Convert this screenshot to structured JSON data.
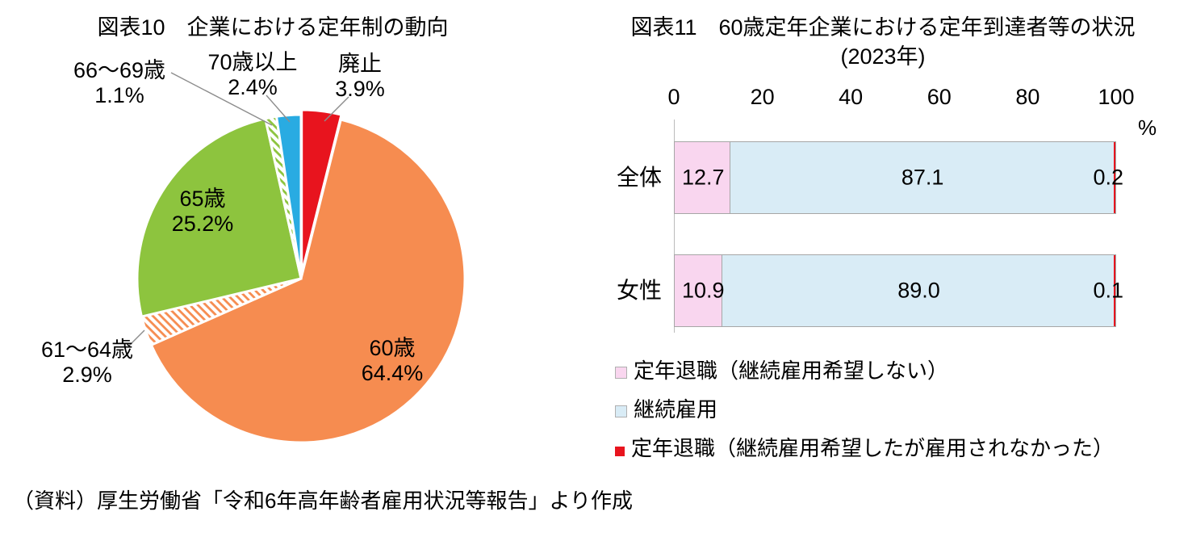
{
  "page": {
    "source_note": "（資料）厚生労働省「令和6年高年齢者雇用状況等報告」より作成"
  },
  "chart_data": [
    {
      "type": "pie",
      "title": "図表10　企業における定年制の動向",
      "unit": "%",
      "start_angle_deg": 0,
      "direction": "clockwise",
      "slices": [
        {
          "label": "廃止",
          "value": 3.9,
          "color": "#e8141e",
          "pattern": "solid",
          "exploded": true
        },
        {
          "label": "60歳",
          "value": 64.4,
          "color": "#f68c50",
          "pattern": "solid"
        },
        {
          "label": "61〜64歳",
          "value": 2.9,
          "color": "#f68c50",
          "pattern": "hatch"
        },
        {
          "label": "65歳",
          "value": 25.2,
          "color": "#8dc43e",
          "pattern": "solid"
        },
        {
          "label": "66〜69歳",
          "value": 1.1,
          "color": "#8dc43e",
          "pattern": "hatch"
        },
        {
          "label": "70歳以上",
          "value": 2.4,
          "color": "#29abe2",
          "pattern": "solid"
        }
      ]
    },
    {
      "type": "bar",
      "orientation": "horizontal-stacked",
      "title": "図表11　60歳定年企業における定年到達者等の状況",
      "subtitle": "(2023年)",
      "axis": {
        "ticks": [
          0,
          20,
          40,
          60,
          80,
          100
        ],
        "min": 0,
        "max": 100,
        "unit": "%",
        "position": "top"
      },
      "categories": [
        "全体",
        "女性"
      ],
      "series": [
        {
          "name": "定年退職（継続雇用希望しない）",
          "color": "#f9d6ef",
          "values": [
            12.7,
            10.9
          ]
        },
        {
          "name": "継続雇用",
          "color": "#d9ecf6",
          "values": [
            87.1,
            89.0
          ]
        },
        {
          "name": "定年退職（継続雇用希望したが雇用されなかった）",
          "color": "#e8141e",
          "values": [
            0.2,
            0.1
          ]
        }
      ],
      "legend_position": "bottom",
      "grid": false
    }
  ]
}
